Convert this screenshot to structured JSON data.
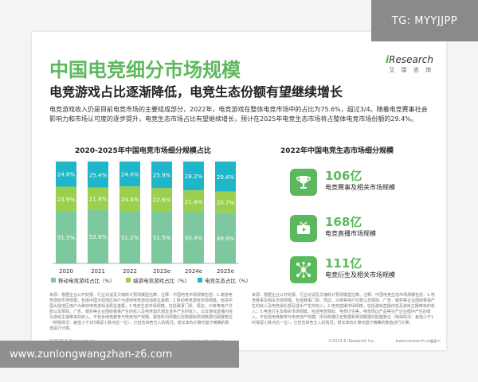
{
  "overlay": {
    "tg": "TG: MYYJJPP",
    "site": "www.zunlongwangzhan-z6.com"
  },
  "header": {
    "title": "中国电竞细分市场规模",
    "subtitle": "电竞游戏占比逐渐降低，电竞生态份额有望继续增长",
    "brand": "iResearch",
    "brand_sub": "艾 瑞 咨 询"
  },
  "intro": "电竞游戏收入仍是目前电竞市场的主要组成部分，2022年，电竞游戏在整体电竞市场中的占比为75.6%，超过3/4。随着电竞赛事社会影响力和市场认可度的逐步提升，电竞生态市场占比有望继续增长，预计在2025年电竞生态市场将占整体电竞市场份额的29.4%。",
  "left_chart_title": "2020-2025年中国电竞市场细分规模占比",
  "right_title": "2022年中国电竞生态市场细分规模",
  "chart_data": {
    "type": "bar",
    "stacked": true,
    "percent": true,
    "categories": [
      "2020",
      "2021",
      "2022",
      "2023e",
      "2024e",
      "2025e"
    ],
    "series": [
      {
        "name": "移动电竞游戏占比（%）",
        "color": "#7ec8a0",
        "values": [
          51.5,
          52.8,
          51.2,
          51.5,
          50.4,
          49.9
        ]
      },
      {
        "name": "端游电竞游戏占比（%）",
        "color": "#9bcf4e",
        "values": [
          23.9,
          21.8,
          24.4,
          22.6,
          21.4,
          20.7
        ]
      },
      {
        "name": "电竞生态占比（%）",
        "color": "#1fb6c9",
        "values": [
          24.6,
          25.4,
          24.4,
          25.9,
          28.2,
          29.4
        ]
      }
    ],
    "ylim": [
      0,
      100
    ],
    "legend": "bottom"
  },
  "eco_cards": [
    {
      "value": "106亿",
      "label": "电竞赛事及相关市场规模",
      "icon": "trophy-icon"
    },
    {
      "value": "168亿",
      "label": "电竞直播市场规模",
      "icon": "tv-icon"
    },
    {
      "value": "111亿",
      "label": "电竞衍生及相关市场规模",
      "icon": "network-icon"
    }
  ],
  "notes_left": "来源：根据企业公开财报、行业访谈及艾瑞统计预测模型估算。注释：中国电竞市场规模包括：1.端游电竞游戏市场规模，包括中国大陆地区用户为游戏电竞游戏消费总金额；2.移动电竞游戏市场规模，包括中国大陆地区用户为移动电竞游戏消费总金额；3.电竞生态市场规模，包括赛事门票、周边、众筹等用户付费以及赞助、广告、版权等企业围绕赛事产生的收入及电竞俱乐部及选手产生的收入，以及游戏直播内容及游戏主播带来的收入。不包含电竞教育与电竞地产规模。报告所列规模历史数据和预测数据均取整数位（特殊情况：差值小于1时保留小数点后一位），已包含四舍五入的情况；增长率的计算均基于精确的数值进行计算。",
  "notes_right": "来源：根据企业公开财报、行业访谈及艾瑞统计预测模型估算。注释：中国电竞生态市场规模包括：1.电竞赛事及相关市场规模，包括赛事门票、周边、众筹等用户付费以及赞助、广告、版权等企业围绕赛事产生的收入及电竞俱乐部及选手产生的收入；2.电竞直播市场规模，包括游戏直播内容及游戏主播带来的收入；3.电竞衍生及相关市场规模，包括电竞赞助、电竞衍生等，电竞周边产品等生产企业循环产生的收入。不包括电竞教育与电竞地产规模。所列规模历史数据和预测数据均取整数位（特殊情况：差值小于1时保留小数点后一位），已包含四舍五入的情况；增长率的计算均基于精确的数值进行计算。",
  "footer": {
    "copyright_left": "©2023.6 iResearch Inc.",
    "site_left": "www.iresearch.com.cn",
    "copyright_right": "©2023.6 iResearch Inc.",
    "site_right": "www.iresearch.com.cn",
    "page": "13"
  }
}
